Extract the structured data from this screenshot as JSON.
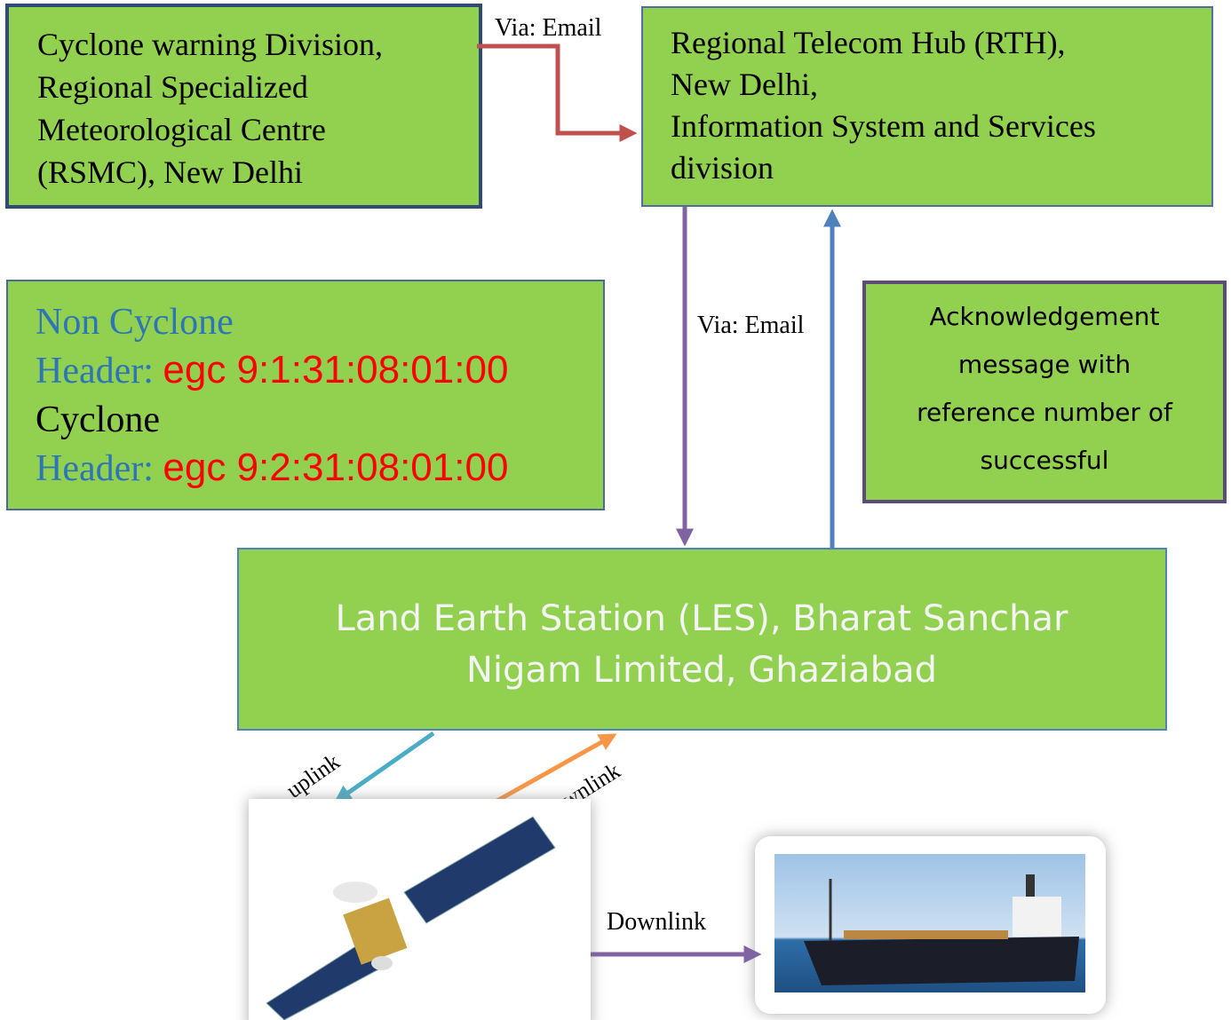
{
  "nodes": [
    {
      "lines": [
        "Cyclone warning Division,",
        "Regional Specialized",
        "Meteorological Centre",
        "(RSMC), New Delhi"
      ]
    },
    {
      "lines": [
        "Regional Telecom Hub (RTH),",
        "New Delhi,",
        "Information System and Services",
        "division"
      ]
    },
    {
      "lines": [
        "Acknowledgement",
        "message with",
        "reference number of",
        "successful"
      ]
    },
    {
      "lines": [
        "Land Earth Station (LES), Bharat Sanchar",
        "Nigam Limited, Ghaziabad"
      ]
    }
  ],
  "headers": {
    "rows": [
      {
        "label": "Non Cyclone"
      },
      {
        "label": "Header:",
        "code": "egc 9:1:31:08:01:00"
      },
      {
        "label": "Cyclone"
      },
      {
        "label": "Header:",
        "code": "egc 9:2:31:08:01:00"
      }
    ]
  },
  "edges": [
    {
      "label": "Via: Email"
    },
    {
      "label": "Via: Email"
    },
    {
      "label": "uplink"
    },
    {
      "label": "Downlink"
    },
    {
      "label": "Downlink"
    }
  ]
}
